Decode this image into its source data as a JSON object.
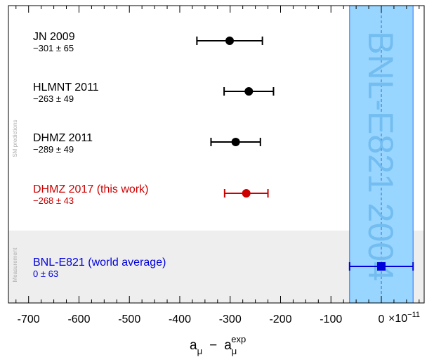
{
  "chart_data": {
    "type": "scatter",
    "xlabel_main": "a",
    "xlabel_main_sub": "μ",
    "xlabel_minus": "−",
    "xlabel_exp": "a",
    "xlabel_exp_sub": "μ",
    "xlabel_exp_sup": "exp",
    "scale_factor": "×10",
    "scale_exp": "−11",
    "xlim": [
      -740,
      85
    ],
    "xticks": [
      -700,
      -600,
      -500,
      -400,
      -300,
      -200,
      -100,
      0
    ],
    "xtick_labels": [
      "-700",
      "-600",
      "-500",
      "-400",
      "-300",
      "-200",
      "-100",
      "0"
    ],
    "band": {
      "label": "BNL-E821 2004",
      "center": 0,
      "half_width": 63,
      "color": "#99d6ff"
    },
    "section_labels": {
      "predictions": "SM predictions",
      "measurement": "Measurement"
    },
    "series": [
      {
        "name": "JN 2009",
        "value_text": "−301 ± 65",
        "x": -301,
        "err": 65,
        "color": "#000000",
        "marker": "circle"
      },
      {
        "name": "HLMNT 2011",
        "value_text": "−263 ± 49",
        "x": -263,
        "err": 49,
        "color": "#000000",
        "marker": "circle"
      },
      {
        "name": "DHMZ 2011",
        "value_text": "−289 ± 49",
        "x": -289,
        "err": 49,
        "color": "#000000",
        "marker": "circle"
      },
      {
        "name": "DHMZ 2017 (this work)",
        "value_text": "−268 ± 43",
        "x": -268,
        "err": 43,
        "color": "#cc0000",
        "marker": "circle"
      },
      {
        "name": "BNL-E821 (world average)",
        "value_text": "0 ± 63",
        "x": 0,
        "err": 63,
        "color": "#0000dd",
        "marker": "square"
      }
    ]
  }
}
